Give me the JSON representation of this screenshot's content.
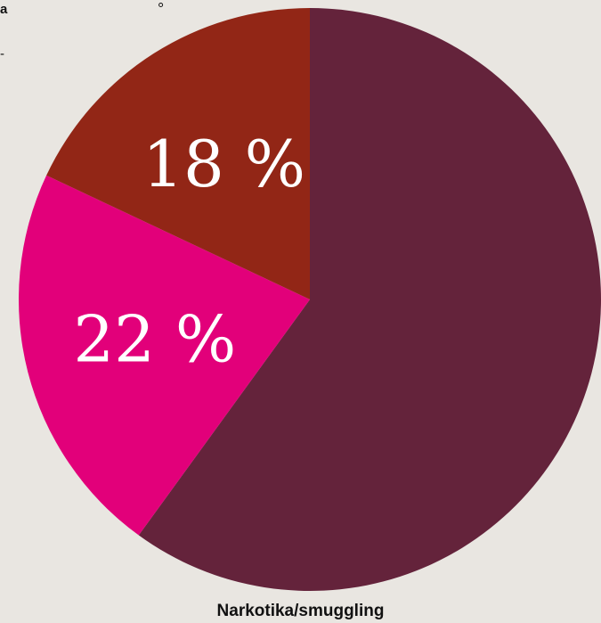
{
  "chart_data": {
    "type": "pie",
    "values": [
      60,
      22,
      18
    ],
    "slice_labels": [
      "",
      "22 %",
      "18 %"
    ],
    "colors": [
      "#64233b",
      "#e2007a",
      "#922616"
    ],
    "bottom_label": "Narkotika/smuggling"
  },
  "fragments": {
    "top_left": "a",
    "top_right": "°",
    "side_mark": "-"
  }
}
